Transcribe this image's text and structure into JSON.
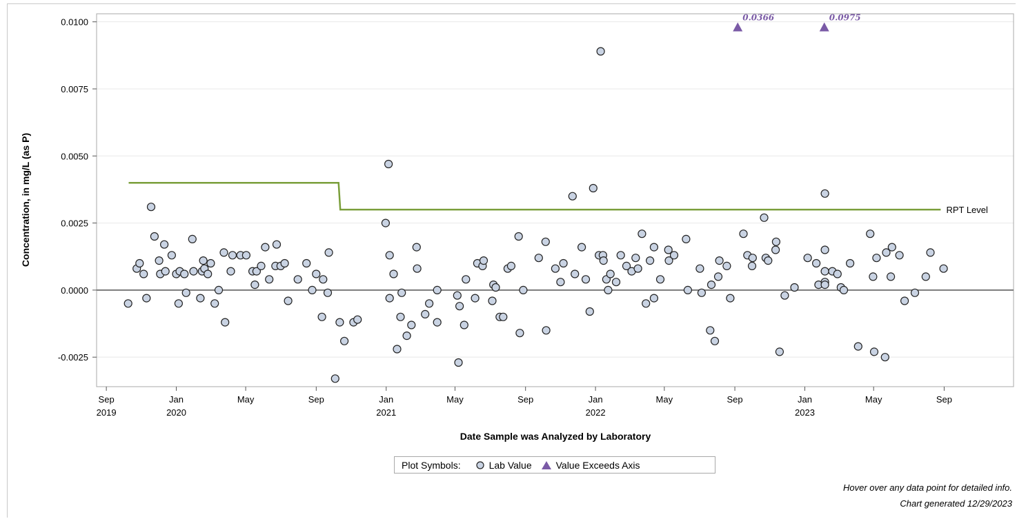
{
  "chart_data": {
    "type": "scatter",
    "xlabel": "Date Sample was Analyzed by Laboratory",
    "ylabel": "Concentration, in mg/L (as P)",
    "ylim": [
      -0.0036,
      0.0103
    ],
    "xlim": [
      "2019-08-15",
      "2023-12-31"
    ],
    "y_ticks": [
      "0.0100",
      "0.0075",
      "0.0050",
      "0.0025",
      "0.0000",
      "-0.0025"
    ],
    "y_tick_values": [
      0.01,
      0.0075,
      0.005,
      0.0025,
      0.0,
      -0.0025
    ],
    "x_ticks": [
      {
        "date": "2019-09-01",
        "label": "Sep",
        "year": "2019"
      },
      {
        "date": "2020-01-01",
        "label": "Jan",
        "year": "2020"
      },
      {
        "date": "2020-05-01",
        "label": "May",
        "year": ""
      },
      {
        "date": "2020-09-01",
        "label": "Sep",
        "year": ""
      },
      {
        "date": "2021-01-01",
        "label": "Jan",
        "year": "2021"
      },
      {
        "date": "2021-05-01",
        "label": "May",
        "year": ""
      },
      {
        "date": "2021-09-01",
        "label": "Sep",
        "year": ""
      },
      {
        "date": "2022-01-01",
        "label": "Jan",
        "year": "2022"
      },
      {
        "date": "2022-05-01",
        "label": "May",
        "year": ""
      },
      {
        "date": "2022-09-01",
        "label": "Sep",
        "year": ""
      },
      {
        "date": "2023-01-01",
        "label": "Jan",
        "year": "2023"
      },
      {
        "date": "2023-05-01",
        "label": "May",
        "year": ""
      },
      {
        "date": "2023-09-01",
        "label": "Sep",
        "year": ""
      }
    ],
    "grid": "horizontal",
    "zero_line": true,
    "rpt_level": {
      "label": "RPT Level",
      "color": "#7a9e3a",
      "points": [
        [
          "2019-10-10",
          0.004
        ],
        [
          "2020-10-10",
          0.004
        ],
        [
          "2020-10-13",
          0.003
        ],
        [
          "2023-08-26",
          0.003
        ]
      ]
    },
    "lab_values": [
      [
        "2019-10-09",
        -0.0005
      ],
      [
        "2019-10-24",
        0.0008
      ],
      [
        "2019-10-29",
        0.001
      ],
      [
        "2019-11-05",
        0.0006
      ],
      [
        "2019-11-10",
        -0.0003
      ],
      [
        "2019-11-18",
        0.0031
      ],
      [
        "2019-11-24",
        0.002
      ],
      [
        "2019-12-02",
        0.0011
      ],
      [
        "2019-12-04",
        0.0006
      ],
      [
        "2019-12-11",
        0.0017
      ],
      [
        "2019-12-13",
        0.0007
      ],
      [
        "2019-12-24",
        0.0013
      ],
      [
        "2020-01-01",
        0.0006
      ],
      [
        "2020-01-05",
        -0.0005
      ],
      [
        "2020-01-07",
        0.0007
      ],
      [
        "2020-01-15",
        0.0006
      ],
      [
        "2020-01-18",
        -0.0001
      ],
      [
        "2020-01-29",
        0.0019
      ],
      [
        "2020-01-31",
        0.0007
      ],
      [
        "2020-02-12",
        -0.0003
      ],
      [
        "2020-02-15",
        0.0007
      ],
      [
        "2020-02-17",
        0.0011
      ],
      [
        "2020-02-19",
        0.0008
      ],
      [
        "2020-02-25",
        0.0006
      ],
      [
        "2020-03-01",
        0.001
      ],
      [
        "2020-03-08",
        -0.0005
      ],
      [
        "2020-03-15",
        0.0
      ],
      [
        "2020-03-24",
        0.0014
      ],
      [
        "2020-03-26",
        -0.0012
      ],
      [
        "2020-04-05",
        0.0007
      ],
      [
        "2020-04-08",
        0.0013
      ],
      [
        "2020-04-22",
        0.0013
      ],
      [
        "2020-05-02",
        0.0013
      ],
      [
        "2020-05-13",
        0.0007
      ],
      [
        "2020-05-17",
        0.0002
      ],
      [
        "2020-05-20",
        0.0007
      ],
      [
        "2020-05-28",
        0.0009
      ],
      [
        "2020-06-04",
        0.0016
      ],
      [
        "2020-06-11",
        0.0004
      ],
      [
        "2020-06-22",
        0.0009
      ],
      [
        "2020-06-24",
        0.0017
      ],
      [
        "2020-07-01",
        0.0009
      ],
      [
        "2020-07-08",
        0.001
      ],
      [
        "2020-07-14",
        -0.0004
      ],
      [
        "2020-07-31",
        0.0004
      ],
      [
        "2020-08-15",
        0.001
      ],
      [
        "2020-08-25",
        0.0
      ],
      [
        "2020-09-01",
        0.0006
      ],
      [
        "2020-09-11",
        -0.001
      ],
      [
        "2020-09-13",
        0.0004
      ],
      [
        "2020-09-21",
        -0.0001
      ],
      [
        "2020-09-23",
        0.0014
      ],
      [
        "2020-10-04",
        -0.0033
      ],
      [
        "2020-10-12",
        -0.0012
      ],
      [
        "2020-10-20",
        -0.0019
      ],
      [
        "2020-11-05",
        -0.0012
      ],
      [
        "2020-11-12",
        -0.0011
      ],
      [
        "2020-12-31",
        0.0025
      ],
      [
        "2021-01-05",
        0.0047
      ],
      [
        "2021-01-07",
        0.0013
      ],
      [
        "2021-01-07",
        -0.0003
      ],
      [
        "2021-01-14",
        0.0006
      ],
      [
        "2021-01-20",
        -0.0022
      ],
      [
        "2021-01-26",
        -0.001
      ],
      [
        "2021-01-28",
        -0.0001
      ],
      [
        "2021-02-06",
        -0.0017
      ],
      [
        "2021-02-14",
        -0.0013
      ],
      [
        "2021-02-23",
        0.0016
      ],
      [
        "2021-02-24",
        0.0008
      ],
      [
        "2021-03-10",
        -0.0009
      ],
      [
        "2021-03-17",
        -0.0005
      ],
      [
        "2021-03-31",
        -0.0012
      ],
      [
        "2021-03-31",
        0.0
      ],
      [
        "2021-05-05",
        -0.0002
      ],
      [
        "2021-05-07",
        -0.0027
      ],
      [
        "2021-05-09",
        -0.0006
      ],
      [
        "2021-05-17",
        -0.0013
      ],
      [
        "2021-05-20",
        0.0004
      ],
      [
        "2021-06-05",
        -0.0003
      ],
      [
        "2021-06-09",
        0.001
      ],
      [
        "2021-06-18",
        0.0009
      ],
      [
        "2021-06-20",
        0.0011
      ],
      [
        "2021-07-05",
        -0.0004
      ],
      [
        "2021-07-07",
        0.0002
      ],
      [
        "2021-07-11",
        0.0001
      ],
      [
        "2021-07-18",
        -0.001
      ],
      [
        "2021-07-24",
        -0.001
      ],
      [
        "2021-08-01",
        0.0008
      ],
      [
        "2021-08-07",
        0.0009
      ],
      [
        "2021-08-20",
        0.002
      ],
      [
        "2021-08-22",
        -0.0016
      ],
      [
        "2021-08-28",
        0.0
      ],
      [
        "2021-09-24",
        0.0012
      ],
      [
        "2021-10-06",
        0.0018
      ],
      [
        "2021-10-07",
        -0.0015
      ],
      [
        "2021-10-23",
        0.0008
      ],
      [
        "2021-11-01",
        0.0003
      ],
      [
        "2021-11-06",
        0.001
      ],
      [
        "2021-11-22",
        0.0035
      ],
      [
        "2021-11-26",
        0.0006
      ],
      [
        "2021-12-08",
        0.0016
      ],
      [
        "2021-12-15",
        0.0004
      ],
      [
        "2021-12-22",
        -0.0008
      ],
      [
        "2021-12-28",
        0.0038
      ],
      [
        "2022-01-07",
        0.0013
      ],
      [
        "2022-01-10",
        0.0089
      ],
      [
        "2022-01-14",
        0.0013
      ],
      [
        "2022-01-15",
        0.0011
      ],
      [
        "2022-01-20",
        0.0004
      ],
      [
        "2022-01-23",
        0.0
      ],
      [
        "2022-01-27",
        0.0006
      ],
      [
        "2022-02-06",
        0.0003
      ],
      [
        "2022-02-14",
        0.0013
      ],
      [
        "2022-02-24",
        0.0009
      ],
      [
        "2022-03-05",
        0.0007
      ],
      [
        "2022-03-12",
        0.0012
      ],
      [
        "2022-03-16",
        0.0008
      ],
      [
        "2022-03-23",
        0.0021
      ],
      [
        "2022-03-30",
        -0.0005
      ],
      [
        "2022-04-06",
        0.0011
      ],
      [
        "2022-04-13",
        -0.0003
      ],
      [
        "2022-04-13",
        0.0016
      ],
      [
        "2022-04-24",
        0.0004
      ],
      [
        "2022-05-08",
        0.0015
      ],
      [
        "2022-05-09",
        0.0011
      ],
      [
        "2022-05-18",
        0.0013
      ],
      [
        "2022-06-08",
        0.0019
      ],
      [
        "2022-06-11",
        0.0
      ],
      [
        "2022-07-02",
        0.0008
      ],
      [
        "2022-07-05",
        -0.0001
      ],
      [
        "2022-07-20",
        -0.0015
      ],
      [
        "2022-07-22",
        0.0002
      ],
      [
        "2022-07-28",
        -0.0019
      ],
      [
        "2022-08-03",
        0.0005
      ],
      [
        "2022-08-05",
        0.0011
      ],
      [
        "2022-08-18",
        0.0009
      ],
      [
        "2022-08-24",
        -0.0003
      ],
      [
        "2022-09-16",
        0.0021
      ],
      [
        "2022-09-23",
        0.0013
      ],
      [
        "2022-10-01",
        0.0009
      ],
      [
        "2022-10-02",
        0.0012
      ],
      [
        "2022-10-22",
        0.0027
      ],
      [
        "2022-10-25",
        0.0012
      ],
      [
        "2022-10-29",
        0.0011
      ],
      [
        "2022-11-11",
        0.0015
      ],
      [
        "2022-11-12",
        0.0018
      ],
      [
        "2022-11-18",
        -0.0023
      ],
      [
        "2022-11-27",
        -0.0002
      ],
      [
        "2022-12-14",
        0.0001
      ],
      [
        "2023-01-06",
        0.0012
      ],
      [
        "2023-01-21",
        0.001
      ],
      [
        "2023-01-25",
        0.0002
      ],
      [
        "2023-02-05",
        0.0036
      ],
      [
        "2023-02-05",
        0.0015
      ],
      [
        "2023-02-05",
        0.0007
      ],
      [
        "2023-02-05",
        0.0003
      ],
      [
        "2023-02-05",
        0.0002
      ],
      [
        "2023-02-18",
        0.0007
      ],
      [
        "2023-02-27",
        0.0006
      ],
      [
        "2023-03-05",
        0.0001
      ],
      [
        "2023-03-10",
        0.0
      ],
      [
        "2023-03-21",
        0.001
      ],
      [
        "2023-04-04",
        -0.0021
      ],
      [
        "2023-04-25",
        0.0021
      ],
      [
        "2023-04-30",
        0.0005
      ],
      [
        "2023-05-02",
        -0.0023
      ],
      [
        "2023-05-06",
        0.0012
      ],
      [
        "2023-05-21",
        -0.0025
      ],
      [
        "2023-05-23",
        0.0014
      ],
      [
        "2023-05-31",
        0.0005
      ],
      [
        "2023-06-02",
        0.0016
      ],
      [
        "2023-06-15",
        0.0013
      ],
      [
        "2023-06-24",
        -0.0004
      ],
      [
        "2023-07-12",
        -0.0001
      ],
      [
        "2023-07-31",
        0.0005
      ],
      [
        "2023-08-08",
        0.0014
      ],
      [
        "2023-08-31",
        0.0008
      ]
    ],
    "exceeds_axis": [
      {
        "date": "2022-09-06",
        "value": 0.0366,
        "label": "0.0366"
      },
      {
        "date": "2023-02-04",
        "value": 0.0975,
        "label": "0.0975"
      }
    ],
    "colors": {
      "marker_fill": "#c9d3e3",
      "marker_stroke": "#222222",
      "exceed": "#7a5aa6",
      "grid": "#e8e8e8",
      "zero": "#7a7a7a",
      "rpt": "#7a9e3a"
    }
  },
  "legend": {
    "title": "Plot Symbols:",
    "lab_value": "Lab Value",
    "exceeds": "Value Exceeds Axis"
  },
  "footnotes": {
    "hover": "Hover over any data point for detailed info.",
    "generated": "Chart generated 12/29/2023"
  }
}
